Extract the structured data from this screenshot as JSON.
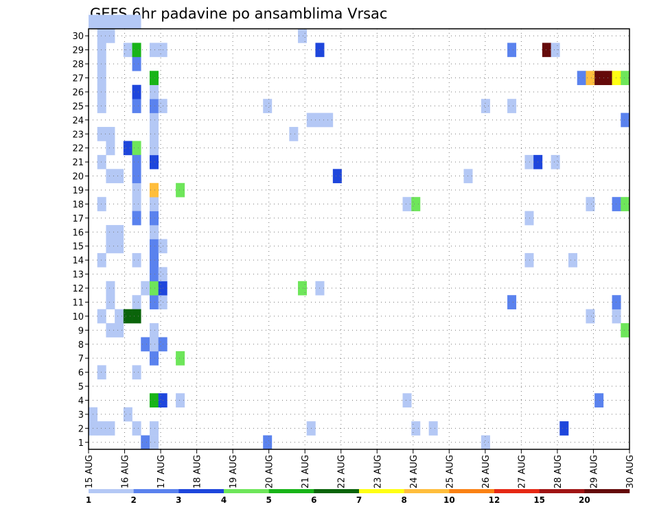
{
  "chart_data": {
    "type": "heatmap",
    "title": "GEFS 6hr padavine po ansamblima Vrsac",
    "xlabel": "",
    "ylabel": "",
    "x_ticks": [
      "15 AUG",
      "16 AUG",
      "17 AUG",
      "18 AUG",
      "19 AUG",
      "20 AUG",
      "21 AUG",
      "22 AUG",
      "23 AUG",
      "24 AUG",
      "25 AUG",
      "26 AUG",
      "27 AUG",
      "28 AUG",
      "29 AUG",
      "30 AUG"
    ],
    "y_ticks": [
      "1",
      "2",
      "3",
      "4",
      "5",
      "6",
      "7",
      "8",
      "9",
      "10",
      "11",
      "12",
      "13",
      "14",
      "15",
      "16",
      "17",
      "18",
      "19",
      "20",
      "21",
      "22",
      "23",
      "24",
      "25",
      "26",
      "27",
      "28",
      "29",
      "30"
    ],
    "x_range": [
      "15 AUG 00Z",
      "30 AUG 00Z"
    ],
    "y_range": [
      0,
      30
    ],
    "x_unit": "6-hour step from 15 AUG 00Z",
    "grid": true,
    "levels": [
      "1",
      "2",
      "3",
      "4",
      "5",
      "6",
      "7",
      "8",
      "10",
      "12",
      "15",
      "20"
    ],
    "level_colors": [
      "#b4c8f5",
      "#5a82ee",
      "#1e46dc",
      "#6ee65a",
      "#18b418",
      "#0a640a",
      "#ffff14",
      "#ffbe3c",
      "#fa8214",
      "#e62814",
      "#a01414",
      "#640a0a"
    ],
    "cells": [
      {
        "step": 0,
        "member": 1
      },
      {
        "step": 0,
        "member": 2
      },
      {
        "step": 0,
        "member": 30
      },
      {
        "step": 1,
        "member": 1
      },
      {
        "step": 1,
        "member": 5
      },
      {
        "step": 1,
        "member": 9
      },
      {
        "step": 1,
        "member": 13
      },
      {
        "step": 1,
        "member": 17
      },
      {
        "step": 1,
        "member": 20
      },
      {
        "step": 1,
        "member": 22
      },
      {
        "step": 1,
        "member": 24
      },
      {
        "step": 1,
        "member": 25
      },
      {
        "step": 1,
        "member": 26
      },
      {
        "step": 1,
        "member": 27
      },
      {
        "step": 1,
        "member": 28
      },
      {
        "step": 1,
        "member": 29
      },
      {
        "step": 1,
        "member": 30
      },
      {
        "step": 2,
        "member": 1
      },
      {
        "step": 2,
        "member": 8
      },
      {
        "step": 2,
        "member": 10
      },
      {
        "step": 2,
        "member": 11
      },
      {
        "step": 2,
        "member": 14
      },
      {
        "step": 2,
        "member": 15
      },
      {
        "step": 2,
        "member": 19
      },
      {
        "step": 2,
        "member": 21
      },
      {
        "step": 2,
        "member": 22
      },
      {
        "step": 2,
        "member": 29
      },
      {
        "step": 2,
        "member": 30
      },
      {
        "step": 3,
        "member": 8
      },
      {
        "step": 3,
        "member": 9
      },
      {
        "step": 3,
        "member": 14
      },
      {
        "step": 3,
        "member": 15
      },
      {
        "step": 3,
        "member": 19
      },
      {
        "step": 3,
        "member": 30
      },
      {
        "step": 4,
        "member": 2
      },
      {
        "step": 4,
        "member": 21,
        "level": 2
      },
      {
        "step": 4,
        "member": 28
      },
      {
        "step": 4,
        "member": 30
      },
      {
        "step": 5,
        "member": 1
      },
      {
        "step": 5,
        "member": 5
      },
      {
        "step": 5,
        "member": 10
      },
      {
        "step": 5,
        "member": 13
      },
      {
        "step": 5,
        "member": 17
      },
      {
        "step": 5,
        "member": 18
      },
      {
        "step": 5,
        "member": 24,
        "level": 1
      },
      {
        "step": 5,
        "member": 25,
        "level": 2
      },
      {
        "step": 5,
        "member": 27,
        "level": 1
      },
      {
        "step": 5,
        "member": 28,
        "level": 4
      },
      {
        "step": 5,
        "member": 21,
        "level": 3
      },
      {
        "step": 4,
        "member": 9,
        "level": 5
      },
      {
        "step": 5,
        "member": 9,
        "level": 5
      },
      {
        "step": 5,
        "member": 16,
        "level": 1
      },
      {
        "step": 5,
        "member": 19,
        "level": 1
      },
      {
        "step": 5,
        "member": 20,
        "level": 1
      },
      {
        "step": 5,
        "member": 30
      },
      {
        "step": 4,
        "member": 30
      },
      {
        "step": 6,
        "member": 0,
        "level": 1
      },
      {
        "step": 6,
        "member": 7,
        "level": 1
      },
      {
        "step": 6,
        "member": 11
      },
      {
        "step": 7,
        "member": 0
      },
      {
        "step": 7,
        "member": 1
      },
      {
        "step": 7,
        "member": 3,
        "level": 4
      },
      {
        "step": 7,
        "member": 6,
        "level": 1
      },
      {
        "step": 7,
        "member": 7
      },
      {
        "step": 7,
        "member": 8
      },
      {
        "step": 7,
        "member": 10,
        "level": 1
      },
      {
        "step": 7,
        "member": 11,
        "level": 3
      },
      {
        "step": 7,
        "member": 12,
        "level": 1
      },
      {
        "step": 7,
        "member": 13,
        "level": 1
      },
      {
        "step": 7,
        "member": 14,
        "level": 1
      },
      {
        "step": 7,
        "member": 15
      },
      {
        "step": 7,
        "member": 16,
        "level": 1
      },
      {
        "step": 7,
        "member": 17
      },
      {
        "step": 7,
        "member": 18,
        "level": 7
      },
      {
        "step": 7,
        "member": 20,
        "level": 2
      },
      {
        "step": 7,
        "member": 21
      },
      {
        "step": 7,
        "member": 22
      },
      {
        "step": 7,
        "member": 23
      },
      {
        "step": 7,
        "member": 24,
        "level": 1
      },
      {
        "step": 7,
        "member": 25
      },
      {
        "step": 7,
        "member": 26,
        "level": 4
      },
      {
        "step": 7,
        "member": 28
      },
      {
        "step": 8,
        "member": 3,
        "level": 2
      },
      {
        "step": 8,
        "member": 7,
        "level": 1
      },
      {
        "step": 8,
        "member": 10
      },
      {
        "step": 8,
        "member": 11,
        "level": 2
      },
      {
        "step": 8,
        "member": 12
      },
      {
        "step": 8,
        "member": 14
      },
      {
        "step": 8,
        "member": 24
      },
      {
        "step": 8,
        "member": 28
      },
      {
        "step": 10,
        "member": 3
      },
      {
        "step": 10,
        "member": 6,
        "level": 3
      },
      {
        "step": 10,
        "member": 18,
        "level": 3
      },
      {
        "step": 20,
        "member": 0,
        "level": 1
      },
      {
        "step": 20,
        "member": 24
      },
      {
        "step": 23,
        "member": 22
      },
      {
        "step": 24,
        "member": 11,
        "level": 3
      },
      {
        "step": 24,
        "member": 29
      },
      {
        "step": 25,
        "member": 1
      },
      {
        "step": 25,
        "member": 23
      },
      {
        "step": 26,
        "member": 11
      },
      {
        "step": 26,
        "member": 23
      },
      {
        "step": 26,
        "member": 28,
        "level": 2
      },
      {
        "step": 27,
        "member": 23
      },
      {
        "step": 28,
        "member": 19,
        "level": 2
      },
      {
        "step": 36,
        "member": 3
      },
      {
        "step": 36,
        "member": 17
      },
      {
        "step": 37,
        "member": 1
      },
      {
        "step": 37,
        "member": 17,
        "level": 3
      },
      {
        "step": 39,
        "member": 1
      },
      {
        "step": 43,
        "member": 19
      },
      {
        "step": 45,
        "member": 0
      },
      {
        "step": 45,
        "member": 24
      },
      {
        "step": 48,
        "member": 24
      },
      {
        "step": 48,
        "member": 10,
        "level": 1
      },
      {
        "step": 48,
        "member": 28,
        "level": 1
      },
      {
        "step": 50,
        "member": 13
      },
      {
        "step": 50,
        "member": 16
      },
      {
        "step": 50,
        "member": 20
      },
      {
        "step": 51,
        "member": 20,
        "level": 2
      },
      {
        "step": 52,
        "member": 28,
        "level": 11
      },
      {
        "step": 53,
        "member": 20
      },
      {
        "step": 53,
        "member": 28
      },
      {
        "step": 54,
        "member": 1,
        "level": 2
      },
      {
        "step": 55,
        "member": 13
      },
      {
        "step": 56,
        "member": 26,
        "level": 1
      },
      {
        "step": 57,
        "member": 9
      },
      {
        "step": 57,
        "member": 17
      },
      {
        "step": 57,
        "member": 26,
        "level": 7
      },
      {
        "step": 58,
        "member": 3,
        "level": 1
      },
      {
        "step": 58,
        "member": 26,
        "level": 11
      },
      {
        "step": 59,
        "member": 26,
        "level": 11
      },
      {
        "step": 60,
        "member": 9
      },
      {
        "step": 60,
        "member": 10,
        "level": 1
      },
      {
        "step": 60,
        "member": 17,
        "level": 1
      },
      {
        "step": 60,
        "member": 26,
        "level": 6
      },
      {
        "step": 61,
        "member": 8,
        "level": 3
      },
      {
        "step": 61,
        "member": 17,
        "level": 3
      },
      {
        "step": 61,
        "member": 23,
        "level": 1
      },
      {
        "step": 61,
        "member": 26,
        "level": 3
      }
    ],
    "cell_level_default": 0
  },
  "colorbar": {
    "labels": [
      "1",
      "2",
      "3",
      "4",
      "5",
      "6",
      "7",
      "8",
      "10",
      "12",
      "15",
      "20"
    ]
  }
}
